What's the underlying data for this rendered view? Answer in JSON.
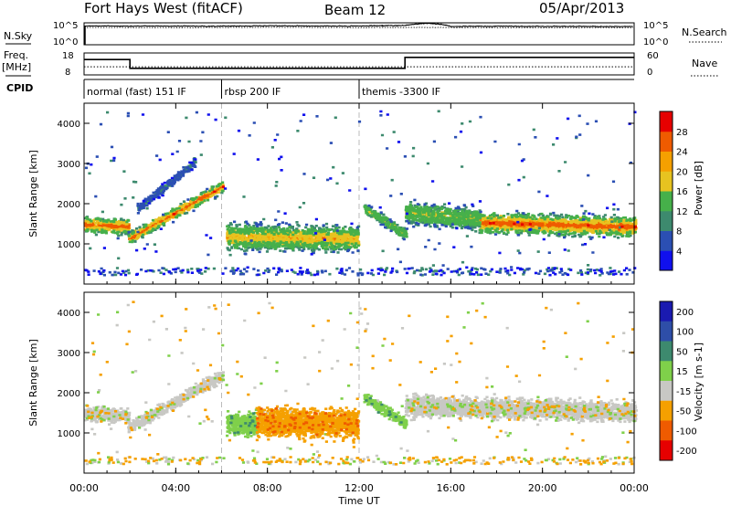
{
  "header": {
    "station": "Fort Hays West (fitACF)",
    "beam": "Beam 12",
    "date": "05/Apr/2013"
  },
  "chart_data": [
    {
      "type": "line",
      "panel": "noise",
      "left_label": "N.Sky",
      "right_label": "N.Search",
      "left_ticks": [
        "10^5",
        "10^0"
      ],
      "right_ticks": [
        "10^5",
        "10^0"
      ],
      "y_scale": "log",
      "x": [
        "00:00",
        "02:00",
        "04:00",
        "06:00",
        "08:00",
        "10:00",
        "12:00",
        "13:00",
        "14:00",
        "15:00",
        "16:00",
        "18:00",
        "20:00",
        "22:00",
        "24:00"
      ],
      "series": [
        {
          "values": [
            20000,
            18000,
            19000,
            17000,
            21000,
            20000,
            18000,
            22000,
            25000,
            80000,
            15000,
            17000,
            16000,
            15000,
            14000
          ]
        },
        {
          "values": [
            9000,
            8500,
            8000,
            8800,
            9500,
            9000,
            8200,
            9000,
            8800,
            9000,
            8500,
            8200,
            8000,
            8300,
            8000
          ]
        }
      ]
    },
    {
      "type": "line",
      "panel": "frequency",
      "left_label_top": "Freq.",
      "left_label_bottom": "[MHz]",
      "right_label": "Nave",
      "left_ticks": [
        "18",
        "8"
      ],
      "right_ticks": [
        "60",
        "0"
      ],
      "series": [
        {
          "x_hours": [
            0,
            2,
            2,
            14,
            14,
            24
          ],
          "values": [
            15,
            15,
            11,
            11,
            16,
            16
          ]
        },
        {
          "x_hours": [
            0,
            24
          ],
          "values": [
            11.7,
            11.7
          ]
        }
      ]
    },
    {
      "type": "table",
      "panel": "cpid",
      "label": "CPID",
      "segments": [
        {
          "start_hour": 0,
          "end_hour": 6,
          "name": "normal (fast) 151 IF"
        },
        {
          "start_hour": 6,
          "end_hour": 12,
          "name": "rbsp 200 IF"
        },
        {
          "start_hour": 12,
          "end_hour": 24,
          "name": "themis -3300 IF"
        }
      ]
    },
    {
      "type": "heatmap",
      "panel": "power",
      "ylabel": "Slant Range [km]",
      "y_ticks": [
        "1000",
        "2000",
        "3000",
        "4000"
      ],
      "ylim": [
        0,
        4500
      ],
      "xlim_hours": [
        0,
        24
      ],
      "colorbar_label": "Power [dB]",
      "colorbar_ticks": [
        "4",
        "8",
        "12",
        "16",
        "20",
        "24",
        "28"
      ],
      "colorbar_colors": [
        "#1010ee",
        "#2b4fb3",
        "#3d8a6e",
        "#46b04a",
        "#e7c320",
        "#f5a000",
        "#ef5b00",
        "#e60000"
      ],
      "features": [
        {
          "h0": 0,
          "h1": 1.9,
          "center_km": [
            1500,
            1450
          ],
          "width_km": 500,
          "peak_db": 24
        },
        {
          "h0": 1.9,
          "h1": 6,
          "center_km": [
            1150,
            2450
          ],
          "width_km": 380,
          "peak_db": 22
        },
        {
          "h0": 2.3,
          "h1": 4.8,
          "center_km": [
            1900,
            3050
          ],
          "width_km": 280,
          "peak_db": 8
        },
        {
          "h0": 6.2,
          "h1": 11.9,
          "center_km": [
            1200,
            1150
          ],
          "width_km": 800,
          "peak_db": 20
        },
        {
          "h0": 12.2,
          "h1": 14,
          "center_km": [
            1900,
            1250
          ],
          "width_km": 350,
          "peak_db": 16
        },
        {
          "h0": 14,
          "h1": 17.2,
          "center_km": [
            1800,
            1650
          ],
          "width_km": 700,
          "peak_db": 16
        },
        {
          "h0": 17.2,
          "h1": 24,
          "center_km": [
            1550,
            1450
          ],
          "width_km": 650,
          "peak_db": 24
        }
      ]
    },
    {
      "type": "heatmap",
      "panel": "velocity",
      "ylabel": "Slant Range [km]",
      "y_ticks": [
        "1000",
        "2000",
        "3000",
        "4000"
      ],
      "ylim": [
        0,
        4500
      ],
      "xlim_hours": [
        0,
        24
      ],
      "colorbar_label": "Velocity [m s-1]",
      "colorbar_ticks": [
        "200",
        "100",
        "50",
        "15",
        "-15",
        "-50",
        "-100",
        "-200"
      ],
      "colorbar_colors": [
        "#1a1ab0",
        "#2e4ea8",
        "#3d8a6e",
        "#7fd04a",
        "#c8c8c4",
        "#f5a000",
        "#ef5b00",
        "#e60000"
      ],
      "features": [
        {
          "h0": 0,
          "h1": 1.9,
          "center_km": [
            1500,
            1450
          ],
          "width_km": 500,
          "velocity": 0
        },
        {
          "h0": 1.9,
          "h1": 6,
          "center_km": [
            1150,
            2450
          ],
          "width_km": 380,
          "velocity": 0
        },
        {
          "h0": 6.2,
          "h1": 7.5,
          "center_km": [
            1250,
            1250
          ],
          "width_km": 700,
          "velocity": 30
        },
        {
          "h0": 7.5,
          "h1": 11.9,
          "center_km": [
            1300,
            1250
          ],
          "width_km": 900,
          "velocity": -40
        },
        {
          "h0": 12.2,
          "h1": 14,
          "center_km": [
            1900,
            1250
          ],
          "width_km": 350,
          "velocity": 30
        },
        {
          "h0": 14,
          "h1": 24,
          "center_km": [
            1700,
            1550
          ],
          "width_km": 650,
          "velocity": 0
        }
      ]
    }
  ],
  "x_axis": {
    "ticks": [
      "00:00",
      "04:00",
      "08:00",
      "12:00",
      "16:00",
      "20:00",
      "00:00"
    ],
    "label": "Time UT"
  }
}
